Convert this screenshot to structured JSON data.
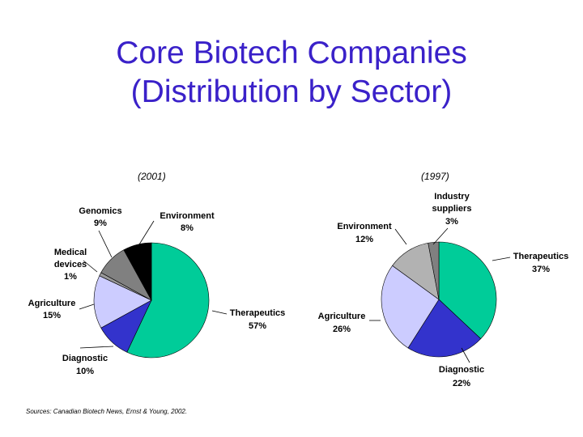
{
  "title": {
    "line1": "Core Biotech Companies",
    "line2": "(Distribution by Sector)"
  },
  "colors": {
    "title": "#3a21c9",
    "Therapeutics": "#00cc99",
    "Diagnostic": "#3333cc",
    "Agriculture": "#ccccff",
    "Medical devices": "#999999",
    "Genomics": "#808080",
    "Environment_2001": "#000000",
    "Environment_1997": "#b2b2b2",
    "Industry suppliers": "#808080"
  },
  "chart_data": [
    {
      "type": "pie",
      "title": "(2001)",
      "slices": [
        {
          "name": "Therapeutics",
          "pct_text": "57%",
          "value": 57
        },
        {
          "name": "Diagnostic",
          "pct_text": "10%",
          "value": 10
        },
        {
          "name": "Agriculture",
          "pct_text": "15%",
          "value": 15
        },
        {
          "name": "Medical devices",
          "label_lines": [
            "Medical",
            "devices"
          ],
          "pct_text": "1%",
          "value": 1
        },
        {
          "name": "Genomics",
          "pct_text": "9%",
          "value": 9
        },
        {
          "name": "Environment",
          "pct_text": "8%",
          "value": 8
        }
      ]
    },
    {
      "type": "pie",
      "title": "(1997)",
      "slices": [
        {
          "name": "Therapeutics",
          "pct_text": "37%",
          "value": 37
        },
        {
          "name": "Diagnostic",
          "pct_text": "22%",
          "value": 22
        },
        {
          "name": "Agriculture",
          "pct_text": "26%",
          "value": 26
        },
        {
          "name": "Environment",
          "pct_text": "12%",
          "value": 12
        },
        {
          "name": "Industry suppliers",
          "label_lines": [
            "Industry",
            "suppliers"
          ],
          "pct_text": "3%",
          "value": 3
        }
      ]
    }
  ],
  "source": "Sources: Canadian Biotech News, Ernst & Young, 2002."
}
